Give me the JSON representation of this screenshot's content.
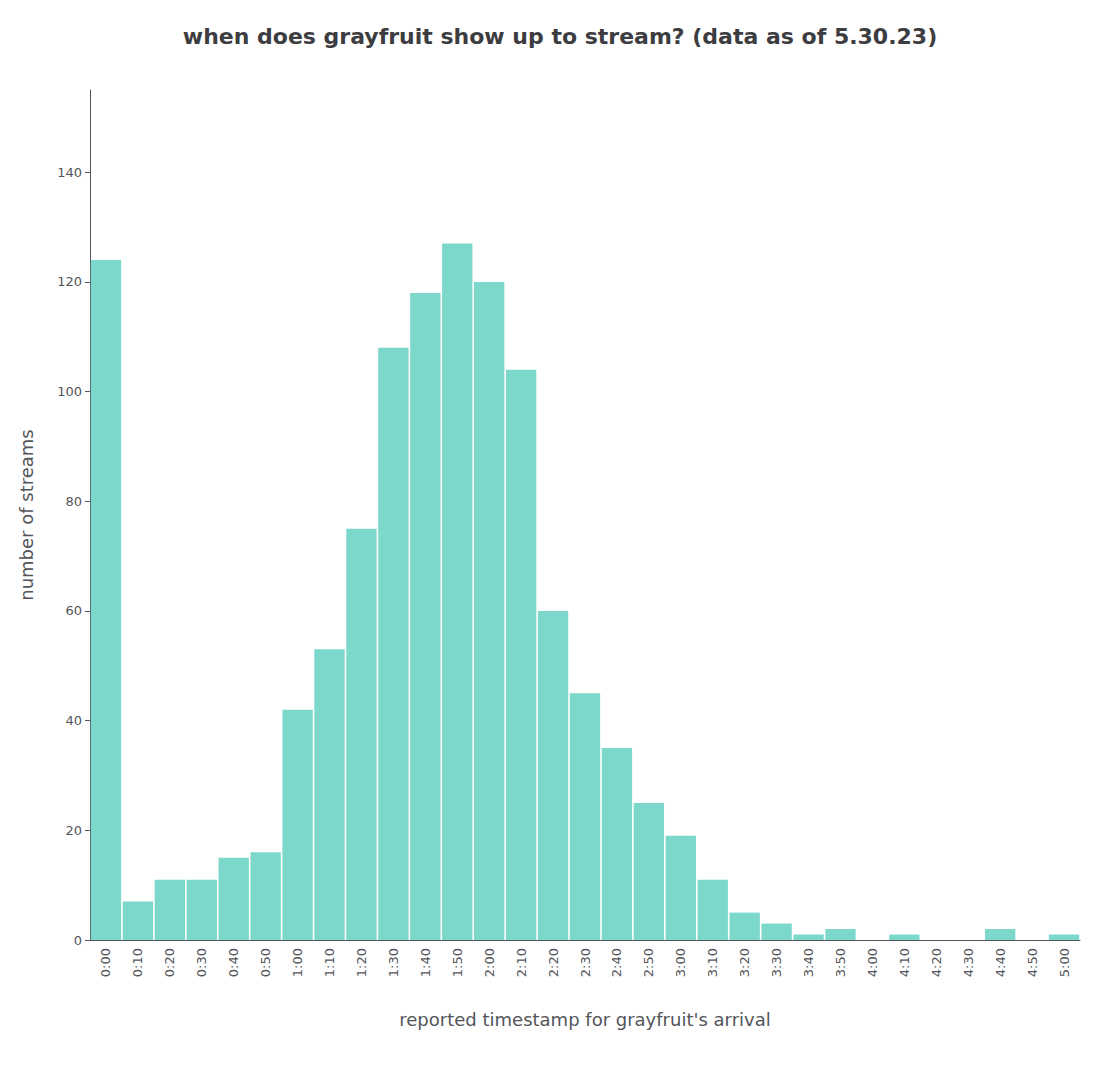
{
  "chart_data": {
    "type": "bar",
    "title": "when does grayfruit show up to stream? (data as of 5.30.23)",
    "xlabel": "reported timestamp for grayfruit's arrival",
    "ylabel": "number of streams",
    "categories": [
      "0:00",
      "0:10",
      "0:20",
      "0:30",
      "0:40",
      "0:50",
      "1:00",
      "1:10",
      "1:20",
      "1:30",
      "1:40",
      "1:50",
      "2:00",
      "2:10",
      "2:20",
      "2:30",
      "2:40",
      "2:50",
      "3:00",
      "3:10",
      "3:20",
      "3:30",
      "3:40",
      "3:50",
      "4:00",
      "4:10",
      "4:20",
      "4:30",
      "4:40",
      "4:50",
      "5:00"
    ],
    "values": [
      124,
      7,
      11,
      11,
      15,
      16,
      42,
      53,
      75,
      108,
      118,
      127,
      120,
      104,
      60,
      45,
      35,
      25,
      19,
      11,
      5,
      3,
      1,
      2,
      0,
      1,
      0,
      0,
      2,
      0,
      1
    ],
    "color": "#7dd8cc",
    "ylim": [
      0,
      155
    ],
    "yticks": [
      0,
      20,
      40,
      60,
      80,
      100,
      120,
      140
    ],
    "grid": false
  }
}
